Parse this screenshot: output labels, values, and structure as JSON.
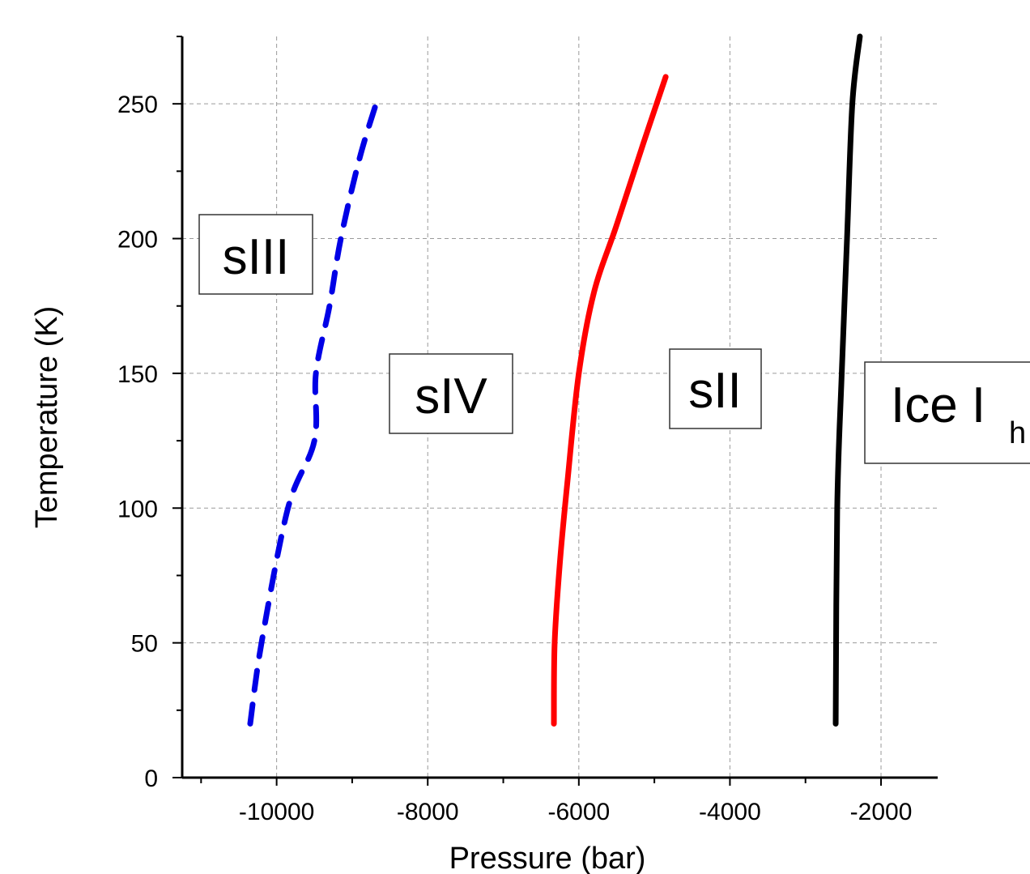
{
  "chart_data": {
    "type": "line",
    "title": "",
    "xlabel": "Pressure (bar)",
    "ylabel": "Temperature (K)",
    "xlim": [
      -11250,
      -1250
    ],
    "ylim": [
      0,
      275
    ],
    "xticks": [
      -10000,
      -8000,
      -6000,
      -4000,
      -2000
    ],
    "xtick_labels": [
      "-10000",
      "-8000",
      "-6000",
      "-4000",
      "-2000"
    ],
    "yticks": [
      0,
      50,
      100,
      150,
      200,
      250
    ],
    "ytick_labels": [
      "0",
      "50",
      "100",
      "150",
      "200",
      "250"
    ],
    "grid": true,
    "series": [
      {
        "color": "#0000e6",
        "style": "dashed",
        "points": [
          [
            -10350,
            20
          ],
          [
            -10200,
            50
          ],
          [
            -9850,
            100
          ],
          [
            -9500,
            125
          ],
          [
            -9480,
            150
          ],
          [
            -9300,
            175
          ],
          [
            -9150,
            200
          ],
          [
            -8900,
            230
          ],
          [
            -8650,
            253
          ]
        ]
      },
      {
        "color": "#ff0000",
        "style": "solid",
        "points": [
          [
            -6330,
            20
          ],
          [
            -6320,
            50
          ],
          [
            -6250,
            80
          ],
          [
            -6150,
            110
          ],
          [
            -6000,
            150
          ],
          [
            -5800,
            180
          ],
          [
            -5500,
            205
          ],
          [
            -5150,
            235
          ],
          [
            -4850,
            260
          ]
        ]
      },
      {
        "color": "#000000",
        "style": "solid",
        "points": [
          [
            -2600,
            20
          ],
          [
            -2580,
            100
          ],
          [
            -2520,
            150
          ],
          [
            -2450,
            200
          ],
          [
            -2380,
            250
          ],
          [
            -2280,
            275
          ]
        ]
      }
    ],
    "regions": [
      {
        "label": "sIII",
        "sub": ""
      },
      {
        "label": "sIV",
        "sub": ""
      },
      {
        "label": "sII",
        "sub": ""
      },
      {
        "label": "Ice I",
        "sub": "h"
      }
    ]
  }
}
